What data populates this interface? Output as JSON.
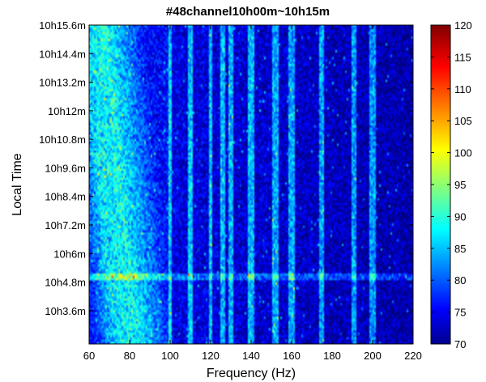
{
  "chart_data": {
    "type": "heatmap",
    "title": "#48channel10h00m~10h15m",
    "xlabel": "Frequency (Hz)",
    "ylabel": "Local Time",
    "xlim": [
      60,
      220
    ],
    "ylim_minutes": [
      2.2,
      15.6
    ],
    "x_ticks": [
      60,
      80,
      100,
      120,
      140,
      160,
      180,
      200,
      220
    ],
    "x_tick_labels": [
      "60",
      "80",
      "100",
      "120",
      "140",
      "160",
      "180",
      "200",
      "220"
    ],
    "y_ticks_minutes": [
      3.6,
      4.8,
      6.0,
      7.2,
      8.4,
      9.6,
      10.8,
      12.0,
      13.2,
      14.4,
      15.6
    ],
    "y_tick_labels": [
      "10h3.6m",
      "10h4.8m",
      "10h6m",
      "10h7.2m",
      "10h8.4m",
      "10h9.6m",
      "10h10.8m",
      "10h12m",
      "10h13.2m",
      "10h14.4m",
      "10h15.6m"
    ],
    "colorbar": {
      "min": 70,
      "max": 120,
      "ticks": [
        70,
        75,
        80,
        85,
        90,
        95,
        100,
        105,
        110,
        115,
        120
      ],
      "tick_labels": [
        "70",
        "75",
        "80",
        "85",
        "90",
        "95",
        "100",
        "105",
        "110",
        "115",
        "120"
      ],
      "colormap": "jet"
    },
    "features": {
      "vertical_lines_hz": [
        100,
        110,
        120,
        126,
        130,
        140,
        152,
        160,
        175,
        191,
        200
      ],
      "horizontal_band_minutes": [
        5.0
      ]
    }
  }
}
